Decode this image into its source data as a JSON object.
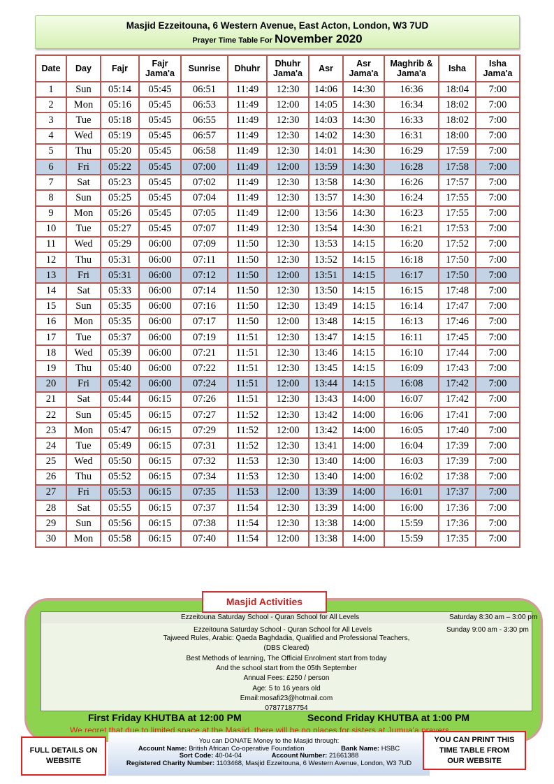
{
  "header": {
    "line1": "Masjid Ezzeitouna, 6 Western Avenue, East Acton, London, W3 7UD",
    "prefix": "Prayer Time Table For",
    "month": "November 2020"
  },
  "columns": [
    "Date",
    "Day",
    "Fajr",
    "Fajr Jama'a",
    "Sunrise",
    "Dhuhr",
    "Dhuhr Jama'a",
    "Asr",
    "Asr Jama'a",
    "Maghrib & Jama'a",
    "Isha",
    "Isha Jama'a"
  ],
  "highlight_color": "#c3d2e4",
  "rows": [
    [
      "1",
      "Sun",
      "05:14",
      "05:45",
      "06:51",
      "11:49",
      "12:30",
      "14:06",
      "14:30",
      "16:36",
      "18:04",
      "7:00"
    ],
    [
      "2",
      "Mon",
      "05:16",
      "05:45",
      "06:53",
      "11:49",
      "12:00",
      "14:05",
      "14:30",
      "16:34",
      "18:02",
      "7:00"
    ],
    [
      "3",
      "Tue",
      "05:18",
      "05:45",
      "06:55",
      "11:49",
      "12:30",
      "14:03",
      "14:30",
      "16:33",
      "18:02",
      "7:00"
    ],
    [
      "4",
      "Wed",
      "05:19",
      "05:45",
      "06:57",
      "11:49",
      "12:30",
      "14:02",
      "14:30",
      "16:31",
      "18:00",
      "7:00"
    ],
    [
      "5",
      "Thu",
      "05:20",
      "05:45",
      "06:58",
      "11:49",
      "12:30",
      "14:01",
      "14:30",
      "16:29",
      "17:59",
      "7:00"
    ],
    [
      "6",
      "Fri",
      "05:22",
      "05:45",
      "07:00",
      "11:49",
      "12:00",
      "13:59",
      "14:30",
      "16:28",
      "17:58",
      "7:00"
    ],
    [
      "7",
      "Sat",
      "05:23",
      "05:45",
      "07:02",
      "11:49",
      "12:30",
      "13:58",
      "14:30",
      "16:26",
      "17:57",
      "7:00"
    ],
    [
      "8",
      "Sun",
      "05:25",
      "05:45",
      "07:04",
      "11:49",
      "12:30",
      "13:57",
      "14:30",
      "16:24",
      "17:55",
      "7:00"
    ],
    [
      "9",
      "Mon",
      "05:26",
      "05:45",
      "07:05",
      "11:49",
      "12:00",
      "13:56",
      "14:30",
      "16:23",
      "17:55",
      "7:00"
    ],
    [
      "10",
      "Tue",
      "05:27",
      "05:45",
      "07:07",
      "11:49",
      "12:30",
      "13:54",
      "14:30",
      "16:21",
      "17:53",
      "7:00"
    ],
    [
      "11",
      "Wed",
      "05:29",
      "06:00",
      "07:09",
      "11:50",
      "12:30",
      "13:53",
      "14:15",
      "16:20",
      "17:52",
      "7:00"
    ],
    [
      "12",
      "Thu",
      "05:31",
      "06:00",
      "07:11",
      "11:50",
      "12:30",
      "13:52",
      "14:15",
      "16:18",
      "17:50",
      "7:00"
    ],
    [
      "13",
      "Fri",
      "05:31",
      "06:00",
      "07:12",
      "11:50",
      "12:00",
      "13:51",
      "14:15",
      "16:17",
      "17:50",
      "7:00"
    ],
    [
      "14",
      "Sat",
      "05:33",
      "06:00",
      "07:14",
      "11:50",
      "12:30",
      "13:50",
      "14:15",
      "16:15",
      "17:48",
      "7:00"
    ],
    [
      "15",
      "Sun",
      "05:35",
      "06:00",
      "07:16",
      "11:50",
      "12:30",
      "13:49",
      "14:15",
      "16:14",
      "17:47",
      "7:00"
    ],
    [
      "16",
      "Mon",
      "05:35",
      "06:00",
      "07:17",
      "11:50",
      "12:00",
      "13:48",
      "14:15",
      "16:13",
      "17:46",
      "7:00"
    ],
    [
      "17",
      "Tue",
      "05:37",
      "06:00",
      "07:19",
      "11:51",
      "12:30",
      "13:47",
      "14:15",
      "16:11",
      "17:45",
      "7:00"
    ],
    [
      "18",
      "Wed",
      "05:39",
      "06:00",
      "07:21",
      "11:51",
      "12:30",
      "13:46",
      "14:15",
      "16:10",
      "17:44",
      "7:00"
    ],
    [
      "19",
      "Thu",
      "05:40",
      "06:00",
      "07:22",
      "11:51",
      "12:30",
      "13:45",
      "14:15",
      "16:09",
      "17:43",
      "7:00"
    ],
    [
      "20",
      "Fri",
      "05:42",
      "06:00",
      "07:24",
      "11:51",
      "12:00",
      "13:44",
      "14:15",
      "16:08",
      "17:42",
      "7:00"
    ],
    [
      "21",
      "Sat",
      "05:44",
      "06:15",
      "07:26",
      "11:51",
      "12:30",
      "13:43",
      "14:00",
      "16:07",
      "17:42",
      "7:00"
    ],
    [
      "22",
      "Sun",
      "05:45",
      "06:15",
      "07:27",
      "11:52",
      "12:30",
      "13:42",
      "14:00",
      "16:06",
      "17:41",
      "7:00"
    ],
    [
      "23",
      "Mon",
      "05:47",
      "06:15",
      "07:29",
      "11:52",
      "12:00",
      "13:42",
      "14:00",
      "16:05",
      "17:40",
      "7:00"
    ],
    [
      "24",
      "Tue",
      "05:49",
      "06:15",
      "07:31",
      "11:52",
      "12:30",
      "13:41",
      "14:00",
      "16:04",
      "17:39",
      "7:00"
    ],
    [
      "25",
      "Wed",
      "05:50",
      "06:15",
      "07:32",
      "11:53",
      "12:30",
      "13:40",
      "14:00",
      "16:03",
      "17:39",
      "7:00"
    ],
    [
      "26",
      "Thu",
      "05:52",
      "06:15",
      "07:34",
      "11:53",
      "12:30",
      "13:40",
      "14:00",
      "16:02",
      "17:38",
      "7:00"
    ],
    [
      "27",
      "Fri",
      "05:53",
      "06:15",
      "07:35",
      "11:53",
      "12:00",
      "13:39",
      "14:00",
      "16:01",
      "17:37",
      "7:00"
    ],
    [
      "28",
      "Sat",
      "05:55",
      "06:15",
      "07:37",
      "11:54",
      "12:30",
      "13:39",
      "14:00",
      "16:00",
      "17:36",
      "7:00"
    ],
    [
      "29",
      "Sun",
      "05:56",
      "06:15",
      "07:38",
      "11:54",
      "12:30",
      "13:38",
      "14:00",
      "15:59",
      "17:36",
      "7:00"
    ],
    [
      "30",
      "Mon",
      "05:58",
      "06:15",
      "07:40",
      "11:54",
      "12:00",
      "13:38",
      "14:00",
      "15:59",
      "17:35",
      "7:00"
    ]
  ],
  "activities": {
    "title": "Masjid Activities",
    "row1": "Ezzeitouna Saturday School - Quran School for All Levels",
    "row1_time": "Saturday 8:30 am – 3:00 pm",
    "row2": "Ezzeitouna Saturday School - Quran School for All Levels",
    "row2_time": "Sunday 9:00 am - 3:30 pm",
    "lines": [
      "Tajweed Rules, Arabic: Qaeda Baghdadia, Qualified and Professional Teachers,",
      "(DBS Cleared)",
      "Best Methods of learning, The Official Enrolment start from today",
      "And the school start from the 05th September",
      "Annual Fees: £250 / person",
      "Age: 5 to 16 years old",
      "Email:mosafi23@hotmail.com",
      "07877187754"
    ]
  },
  "khutba1": "First Friday KHUTBA at 12:00 PM",
  "khutba2": "Second Friday KHUTBA at 1:00 PM",
  "regret": "We regret that due to limited space at the Masjid, there will be no places for sisters at Jumua'a prayers",
  "donate": {
    "intro": "You can DONATE Money to the Masjid through:",
    "acc_label": "Account Name:",
    "acc": "British African Co-operative Foundation",
    "bank_label": "Bank Name:",
    "bank": "HSBC",
    "sort_label": "Sort Code:",
    "sort": "40-04-04",
    "accnum_label": "Account Number:",
    "accnum": "21661388",
    "charity_label": "Registered Charity Number:",
    "charity": "1103468, Masjid Ezzeitouna, 6 Western Avenue, London, W3 7UD"
  },
  "left_box": "FULL DETAILS ON WEBSITE",
  "right_box": "YOU CAN PRINT THIS TIME TABLE FROM OUR WEBSITE"
}
